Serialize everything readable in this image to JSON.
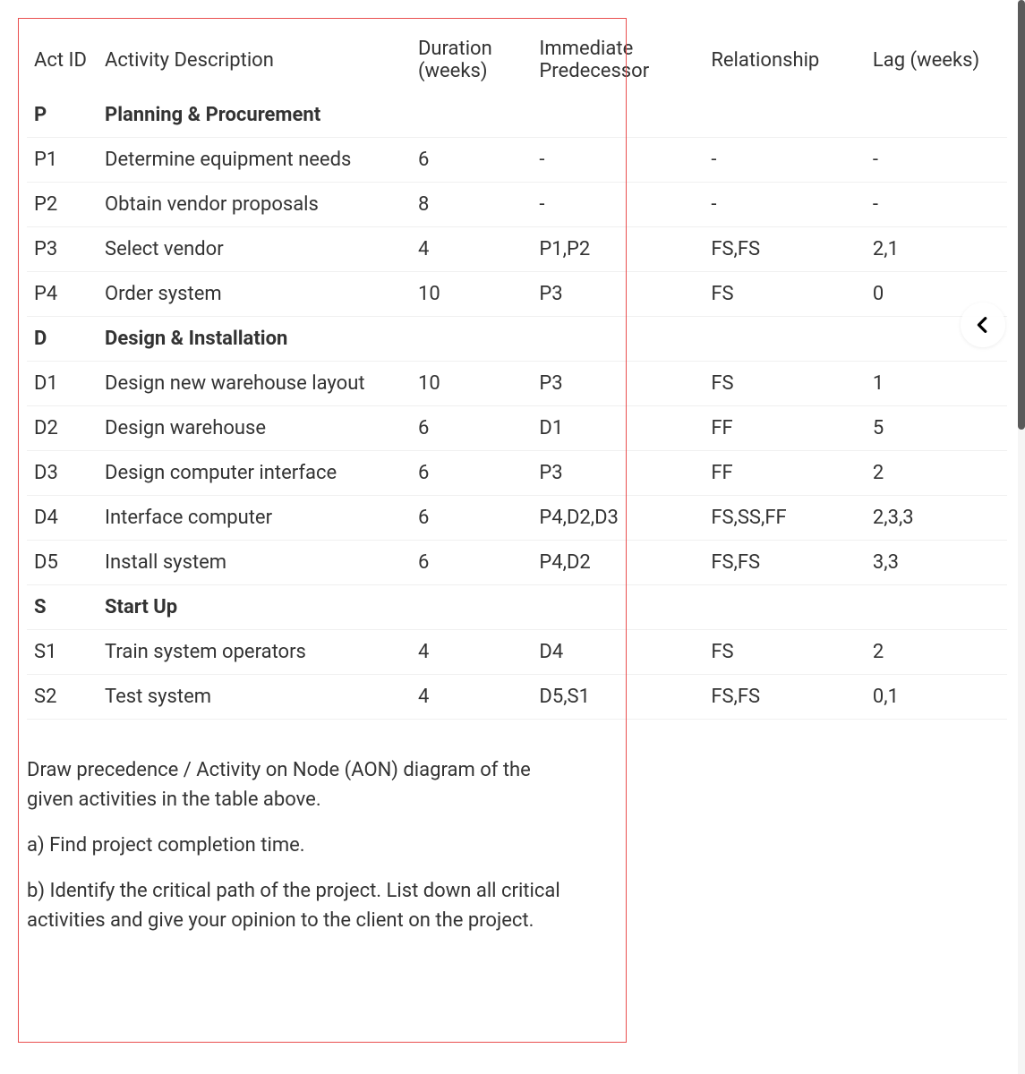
{
  "table": {
    "headers": {
      "id": "Act ID",
      "desc": "Activity Description",
      "dur": "Duration (weeks)",
      "pred": "Immediate Predecessor",
      "rel": "Relationship",
      "lag": "Lag (weeks)"
    },
    "rows": [
      {
        "section": true,
        "id": "P",
        "desc": "Planning & Procurement",
        "dur": "",
        "pred": "",
        "rel": "",
        "lag": ""
      },
      {
        "id": "P1",
        "desc": "Determine equipment needs",
        "dur": "6",
        "pred": "-",
        "rel": "-",
        "lag": "-"
      },
      {
        "id": "P2",
        "desc": "Obtain vendor proposals",
        "dur": "8",
        "pred": "-",
        "rel": "-",
        "lag": "-"
      },
      {
        "id": "P3",
        "desc": "Select vendor",
        "dur": "4",
        "pred": "P1,P2",
        "rel": "FS,FS",
        "lag": "2,1"
      },
      {
        "id": "P4",
        "desc": "Order system",
        "dur": "10",
        "pred": "P3",
        "rel": "FS",
        "lag": "0"
      },
      {
        "section": true,
        "id": "D",
        "desc": "Design & Installation",
        "dur": "",
        "pred": "",
        "rel": "",
        "lag": ""
      },
      {
        "id": "D1",
        "desc": "Design new warehouse layout",
        "dur": "10",
        "pred": "P3",
        "rel": "FS",
        "lag": "1"
      },
      {
        "id": "D2",
        "desc": "Design warehouse",
        "dur": "6",
        "pred": "D1",
        "rel": "FF",
        "lag": "5"
      },
      {
        "id": "D3",
        "desc": "Design computer interface",
        "dur": "6",
        "pred": "P3",
        "rel": "FF",
        "lag": "2"
      },
      {
        "id": "D4",
        "desc": "Interface computer",
        "dur": "6",
        "pred": "P4,D2,D3",
        "rel": "FS,SS,FF",
        "lag": "2,3,3"
      },
      {
        "id": "D5",
        "desc": "Install system",
        "dur": "6",
        "pred": "P4,D2",
        "rel": "FS,FS",
        "lag": "3,3"
      },
      {
        "section": true,
        "id": "S",
        "desc": "Start Up",
        "dur": "",
        "pred": "",
        "rel": "",
        "lag": ""
      },
      {
        "id": "S1",
        "desc": "Train system operators",
        "dur": "4",
        "pred": "D4",
        "rel": "FS",
        "lag": "2"
      },
      {
        "id": "S2",
        "desc": "Test system",
        "dur": "4",
        "pred": "D5,S1",
        "rel": "FS,FS",
        "lag": "0,1"
      }
    ]
  },
  "questions": {
    "intro": "Draw precedence / Activity on Node (AON) diagram of the given activities in the table above.",
    "a": "a) Find project completion time.",
    "b": "b) Identify the critical path of the project. List down all critical activities and give your opinion to the client on the project."
  },
  "colors": {
    "box_border": "#e94f4f",
    "text": "#333333",
    "row_border": "#f0f0f0",
    "scrollbar_thumb": "#5a5a5a"
  }
}
